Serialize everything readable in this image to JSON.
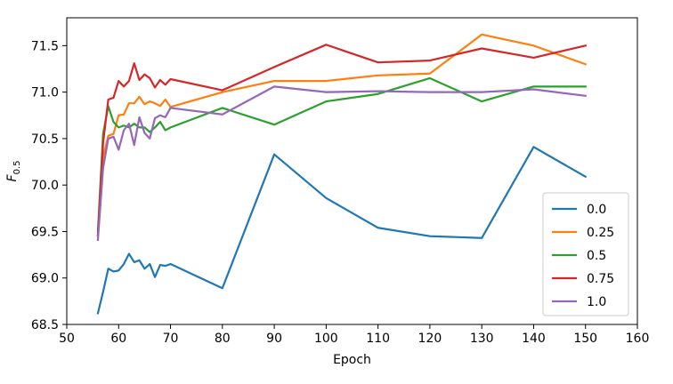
{
  "chart_data": {
    "type": "line",
    "title": "",
    "xlabel": "Epoch",
    "ylabel": {
      "main": "F",
      "sub": "0.5"
    },
    "xlim": [
      50,
      160
    ],
    "ylim": [
      68.5,
      71.8
    ],
    "xticks": [
      50,
      60,
      70,
      80,
      90,
      100,
      110,
      120,
      130,
      140,
      150,
      160
    ],
    "yticks": [
      68.5,
      69.0,
      69.5,
      70.0,
      70.5,
      71.0,
      71.5
    ],
    "grid": false,
    "legend_position": "lower-right",
    "series": [
      {
        "name": "0.0",
        "color": "#1f77b4",
        "x": [
          56,
          57,
          58,
          59,
          60,
          61,
          62,
          63,
          64,
          65,
          66,
          67,
          68,
          69,
          70,
          80,
          90,
          100,
          110,
          120,
          130,
          140,
          150
        ],
        "y": [
          68.62,
          68.85,
          69.1,
          69.07,
          69.08,
          69.15,
          69.26,
          69.17,
          69.19,
          69.1,
          69.15,
          69.01,
          69.14,
          69.13,
          69.15,
          68.89,
          70.33,
          69.86,
          69.54,
          69.45,
          69.43,
          70.41,
          70.09
        ]
      },
      {
        "name": "0.25",
        "color": "#ff7f0e",
        "x": [
          56,
          57,
          58,
          59,
          60,
          61,
          62,
          63,
          64,
          65,
          66,
          67,
          68,
          69,
          70,
          80,
          90,
          100,
          110,
          120,
          130,
          140,
          150
        ],
        "y": [
          69.45,
          70.3,
          70.53,
          70.55,
          70.75,
          70.76,
          70.88,
          70.88,
          70.95,
          70.87,
          70.9,
          70.88,
          70.85,
          70.92,
          70.84,
          71.0,
          71.12,
          71.12,
          71.18,
          71.2,
          71.62,
          71.5,
          71.3
        ]
      },
      {
        "name": "0.5",
        "color": "#2ca02c",
        "x": [
          56,
          57,
          58,
          59,
          60,
          61,
          62,
          63,
          64,
          65,
          66,
          67,
          68,
          69,
          70,
          80,
          90,
          100,
          110,
          120,
          130,
          140,
          150
        ],
        "y": [
          69.5,
          70.55,
          70.85,
          70.68,
          70.62,
          70.64,
          70.62,
          70.66,
          70.62,
          70.62,
          70.57,
          70.62,
          70.68,
          70.59,
          70.62,
          70.83,
          70.65,
          70.9,
          70.98,
          71.15,
          70.9,
          71.06,
          71.06
        ]
      },
      {
        "name": "0.75",
        "color": "#d62728",
        "x": [
          56,
          57,
          58,
          59,
          60,
          61,
          62,
          63,
          64,
          65,
          66,
          67,
          68,
          69,
          70,
          80,
          90,
          100,
          110,
          120,
          130,
          140,
          150
        ],
        "y": [
          69.46,
          70.45,
          70.92,
          70.94,
          71.12,
          71.06,
          71.12,
          71.31,
          71.13,
          71.19,
          71.15,
          71.05,
          71.13,
          71.08,
          71.14,
          71.02,
          71.27,
          71.51,
          71.32,
          71.34,
          71.47,
          71.37,
          71.5
        ]
      },
      {
        "name": "1.0",
        "color": "#9467bd",
        "x": [
          56,
          57,
          58,
          59,
          60,
          61,
          62,
          63,
          64,
          65,
          66,
          67,
          68,
          69,
          70,
          80,
          90,
          100,
          110,
          120,
          130,
          140,
          150
        ],
        "y": [
          69.41,
          70.18,
          70.5,
          70.52,
          70.38,
          70.59,
          70.66,
          70.43,
          70.73,
          70.56,
          70.5,
          70.72,
          70.75,
          70.73,
          70.83,
          70.76,
          71.06,
          71.0,
          71.01,
          71.0,
          71.0,
          71.03,
          70.96
        ]
      }
    ]
  }
}
